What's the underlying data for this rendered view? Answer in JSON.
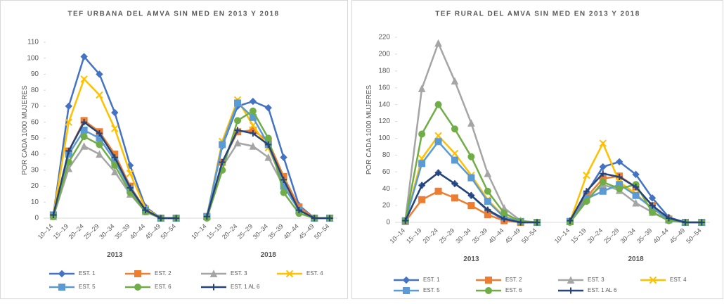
{
  "chart_data": [
    {
      "type": "line",
      "title": "TEF URBANA DEL AMVA SIN MED EN 2013 Y 2018",
      "y_label": "POR CADA 1000 MUJERES",
      "categories": [
        "10--14",
        "15--19",
        "20--24",
        "25--29",
        "30--34",
        "35--39",
        "40--44",
        "45--49",
        "50--54",
        null,
        "10--14",
        "15--19",
        "20--24",
        "25--29",
        "30--34",
        "35--39",
        "40--44",
        "45--49",
        "50--54"
      ],
      "group_labels": [
        "2013",
        "2018"
      ],
      "ylim": [
        0,
        110
      ],
      "yticks": [
        0,
        10,
        20,
        30,
        40,
        50,
        60,
        70,
        80,
        90,
        100,
        110
      ],
      "grid": false,
      "series": [
        {
          "name": "EST. 1",
          "color": "#4472c4",
          "marker": "diamond",
          "values": [
            2,
            70,
            101,
            90,
            66,
            33,
            7,
            0,
            0,
            null,
            1,
            45,
            70,
            73,
            69,
            38,
            8,
            0,
            0
          ]
        },
        {
          "name": "EST. 2",
          "color": "#ed7d31",
          "marker": "square",
          "values": [
            2,
            42,
            61,
            54,
            40,
            20,
            5,
            0,
            0,
            null,
            1,
            35,
            54,
            55,
            48,
            26,
            7,
            0,
            0
          ]
        },
        {
          "name": "EST. 3",
          "color": "#a5a5a5",
          "marker": "triangle",
          "values": [
            1,
            31,
            45,
            40,
            29,
            15,
            4,
            0,
            0,
            null,
            1,
            32,
            47,
            45,
            38,
            20,
            5,
            0,
            0
          ]
        },
        {
          "name": "EST. 4",
          "color": "#ffc000",
          "marker": "x",
          "values": [
            2,
            60,
            87,
            77,
            56,
            28,
            6,
            0,
            0,
            null,
            1,
            48,
            74,
            58,
            44,
            22,
            5,
            0,
            0
          ]
        },
        {
          "name": "EST. 5",
          "color": "#5b9bd5",
          "marker": "square",
          "values": [
            2,
            40,
            55,
            50,
            36,
            18,
            5,
            0,
            0,
            null,
            1,
            46,
            72,
            63,
            46,
            20,
            5,
            0,
            0
          ]
        },
        {
          "name": "EST. 6",
          "color": "#70ad47",
          "marker": "circle",
          "values": [
            1,
            35,
            51,
            46,
            33,
            16,
            4,
            0,
            0,
            null,
            0,
            30,
            61,
            67,
            50,
            16,
            3,
            0,
            0
          ]
        },
        {
          "name": "EST. 1 AL 6",
          "color": "#264478",
          "marker": "plus",
          "values": [
            2,
            42,
            60,
            53,
            38,
            19,
            5,
            0,
            0,
            null,
            1,
            35,
            55,
            53,
            46,
            24,
            5,
            0,
            0
          ]
        }
      ]
    },
    {
      "type": "line",
      "title": "TEF RURAL DEL AMVA SIN MED EN 2013 Y 2018",
      "y_label": "POR CADA 1000 MUJERES",
      "categories": [
        "10--14",
        "15--19",
        "20--24",
        "25--29",
        "30--34",
        "35--39",
        "40--44",
        "45--49",
        "50--54",
        null,
        "10--14",
        "15--19",
        "20--24",
        "25--29",
        "30--34",
        "35--39",
        "40--44",
        "45--49",
        "50--54"
      ],
      "group_labels": [
        "2013",
        "2018"
      ],
      "ylim": [
        0,
        220
      ],
      "yticks": [
        0,
        20,
        40,
        60,
        80,
        100,
        120,
        140,
        160,
        180,
        200,
        220
      ],
      "grid": false,
      "series": [
        {
          "name": "EST. 1",
          "color": "#4472c4",
          "marker": "diamond",
          "values": [
            2,
            44,
            59,
            46,
            32,
            14,
            3,
            0,
            0,
            null,
            1,
            35,
            66,
            72,
            57,
            29,
            6,
            0,
            0
          ]
        },
        {
          "name": "EST. 2",
          "color": "#ed7d31",
          "marker": "square",
          "values": [
            1,
            27,
            37,
            29,
            20,
            9,
            2,
            0,
            0,
            null,
            1,
            30,
            52,
            55,
            42,
            20,
            4,
            0,
            0
          ]
        },
        {
          "name": "EST. 3",
          "color": "#a5a5a5",
          "marker": "triangle",
          "values": [
            3,
            159,
            213,
            168,
            118,
            58,
            17,
            2,
            0,
            null,
            1,
            28,
            45,
            38,
            23,
            12,
            3,
            0,
            0
          ]
        },
        {
          "name": "EST. 4",
          "color": "#ffc000",
          "marker": "x",
          "values": [
            2,
            76,
            103,
            82,
            56,
            27,
            7,
            1,
            0,
            null,
            1,
            56,
            94,
            48,
            34,
            16,
            4,
            0,
            0
          ]
        },
        {
          "name": "EST. 5",
          "color": "#5b9bd5",
          "marker": "square",
          "values": [
            2,
            70,
            96,
            74,
            53,
            25,
            6,
            1,
            0,
            null,
            1,
            28,
            37,
            45,
            32,
            17,
            3,
            0,
            0
          ]
        },
        {
          "name": "EST. 6",
          "color": "#70ad47",
          "marker": "circle",
          "values": [
            2,
            105,
            140,
            111,
            78,
            37,
            11,
            1,
            0,
            null,
            0,
            25,
            48,
            40,
            45,
            12,
            2,
            0,
            0
          ]
        },
        {
          "name": "EST. 1 AL 6",
          "color": "#264478",
          "marker": "plus",
          "values": [
            2,
            44,
            59,
            46,
            32,
            15,
            4,
            0,
            0,
            null,
            2,
            37,
            58,
            54,
            42,
            20,
            5,
            0,
            0
          ]
        }
      ]
    }
  ]
}
